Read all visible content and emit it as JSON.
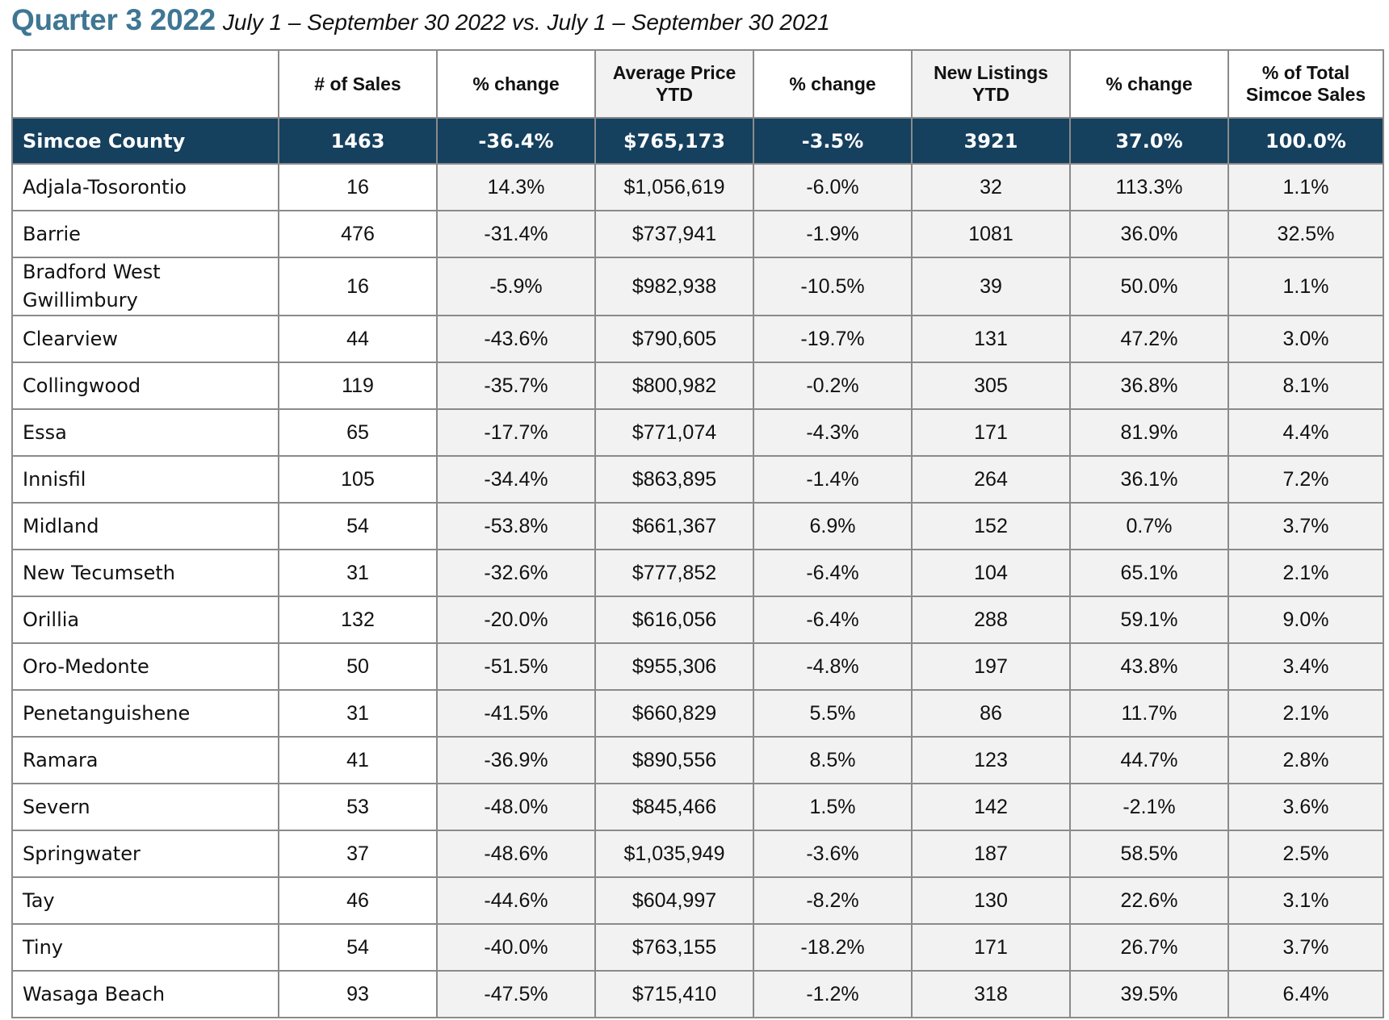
{
  "heading": {
    "title": "Quarter 3 2022",
    "subtitle": "July 1 – September 30 2022 vs. July 1 – September 30 2021"
  },
  "table": {
    "headers": {
      "area": "",
      "sales": "# of Sales",
      "sales_change": "% change",
      "avg_price_line1": "Average Price",
      "avg_price_line2": "YTD",
      "price_change": "% change",
      "listings_line1": "New Listings",
      "listings_line2": "YTD",
      "listings_change": "% change",
      "share_line1": "% of Total",
      "share_line2": "Simcoe Sales"
    },
    "total": {
      "area": "Simcoe County",
      "sales": "1463",
      "sales_change": "-36.4%",
      "avg_price": "$765,173",
      "price_change": "-3.5%",
      "listings": "3921",
      "listings_change": "37.0%",
      "share": "100.0%"
    },
    "rows": [
      {
        "area": "Adjala-Tosorontio",
        "sales": "16",
        "sales_change": "14.3%",
        "avg_price": "$1,056,619",
        "price_change": "-6.0%",
        "listings": "32",
        "listings_change": "113.3%",
        "share": "1.1%"
      },
      {
        "area": "Barrie",
        "sales": "476",
        "sales_change": "-31.4%",
        "avg_price": "$737,941",
        "price_change": "-1.9%",
        "listings": "1081",
        "listings_change": "36.0%",
        "share": "32.5%"
      },
      {
        "area": "Bradford West Gwillimbury",
        "sales": "16",
        "sales_change": "-5.9%",
        "avg_price": "$982,938",
        "price_change": "-10.5%",
        "listings": "39",
        "listings_change": "50.0%",
        "share": "1.1%"
      },
      {
        "area": "Clearview",
        "sales": "44",
        "sales_change": "-43.6%",
        "avg_price": "$790,605",
        "price_change": "-19.7%",
        "listings": "131",
        "listings_change": "47.2%",
        "share": "3.0%"
      },
      {
        "area": "Collingwood",
        "sales": "119",
        "sales_change": "-35.7%",
        "avg_price": "$800,982",
        "price_change": "-0.2%",
        "listings": "305",
        "listings_change": "36.8%",
        "share": "8.1%"
      },
      {
        "area": "Essa",
        "sales": "65",
        "sales_change": "-17.7%",
        "avg_price": "$771,074",
        "price_change": "-4.3%",
        "listings": "171",
        "listings_change": "81.9%",
        "share": "4.4%"
      },
      {
        "area": "Innisfil",
        "sales": "105",
        "sales_change": "-34.4%",
        "avg_price": "$863,895",
        "price_change": "-1.4%",
        "listings": "264",
        "listings_change": "36.1%",
        "share": "7.2%"
      },
      {
        "area": "Midland",
        "sales": "54",
        "sales_change": "-53.8%",
        "avg_price": "$661,367",
        "price_change": "6.9%",
        "listings": "152",
        "listings_change": "0.7%",
        "share": "3.7%"
      },
      {
        "area": "New Tecumseth",
        "sales": "31",
        "sales_change": "-32.6%",
        "avg_price": "$777,852",
        "price_change": "-6.4%",
        "listings": "104",
        "listings_change": "65.1%",
        "share": "2.1%"
      },
      {
        "area": "Orillia",
        "sales": "132",
        "sales_change": "-20.0%",
        "avg_price": "$616,056",
        "price_change": "-6.4%",
        "listings": "288",
        "listings_change": "59.1%",
        "share": "9.0%"
      },
      {
        "area": "Oro-Medonte",
        "sales": "50",
        "sales_change": "-51.5%",
        "avg_price": "$955,306",
        "price_change": "-4.8%",
        "listings": "197",
        "listings_change": "43.8%",
        "share": "3.4%"
      },
      {
        "area": "Penetanguishene",
        "sales": "31",
        "sales_change": "-41.5%",
        "avg_price": "$660,829",
        "price_change": "5.5%",
        "listings": "86",
        "listings_change": "11.7%",
        "share": "2.1%"
      },
      {
        "area": "Ramara",
        "sales": "41",
        "sales_change": "-36.9%",
        "avg_price": "$890,556",
        "price_change": "8.5%",
        "listings": "123",
        "listings_change": "44.7%",
        "share": "2.8%"
      },
      {
        "area": "Severn",
        "sales": "53",
        "sales_change": "-48.0%",
        "avg_price": "$845,466",
        "price_change": "1.5%",
        "listings": "142",
        "listings_change": "-2.1%",
        "share": "3.6%"
      },
      {
        "area": "Springwater",
        "sales": "37",
        "sales_change": "-48.6%",
        "avg_price": "$1,035,949",
        "price_change": "-3.6%",
        "listings": "187",
        "listings_change": "58.5%",
        "share": "2.5%"
      },
      {
        "area": "Tay",
        "sales": "46",
        "sales_change": "-44.6%",
        "avg_price": "$604,997",
        "price_change": "-8.2%",
        "listings": "130",
        "listings_change": "22.6%",
        "share": "3.1%"
      },
      {
        "area": "Tiny",
        "sales": "54",
        "sales_change": "-40.0%",
        "avg_price": "$763,155",
        "price_change": "-18.2%",
        "listings": "171",
        "listings_change": "26.7%",
        "share": "3.7%"
      },
      {
        "area": "Wasaga Beach",
        "sales": "93",
        "sales_change": "-47.5%",
        "avg_price": "$715,410",
        "price_change": "-1.2%",
        "listings": "318",
        "listings_change": "39.5%",
        "share": "6.4%"
      }
    ]
  },
  "colors": {
    "title": "#3f7694",
    "total_row_bg": "#15405e",
    "shaded_column_bg": "#f2f2f2",
    "border": "#8a8a8a"
  }
}
